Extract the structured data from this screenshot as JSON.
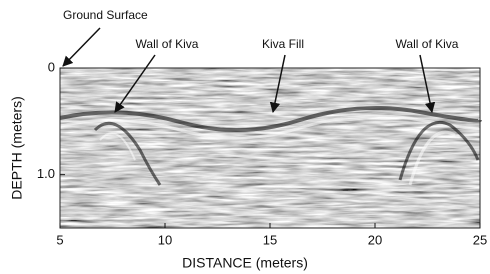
{
  "chart_data": {
    "type": "radargram",
    "xlabel": "DISTANCE (meters)",
    "ylabel": "DEPTH (meters)",
    "xlim": [
      5,
      25
    ],
    "xticks": [
      5,
      10,
      15,
      20,
      25
    ],
    "ylim": [
      0,
      1.5
    ],
    "yticks": [
      0,
      {
        "value": 1,
        "label": "1.0"
      }
    ],
    "y_inverted": true,
    "annotations": [
      "Ground Surface",
      "Wall of Kiva",
      "Kiva Fill",
      "Wall of Kiva"
    ]
  }
}
